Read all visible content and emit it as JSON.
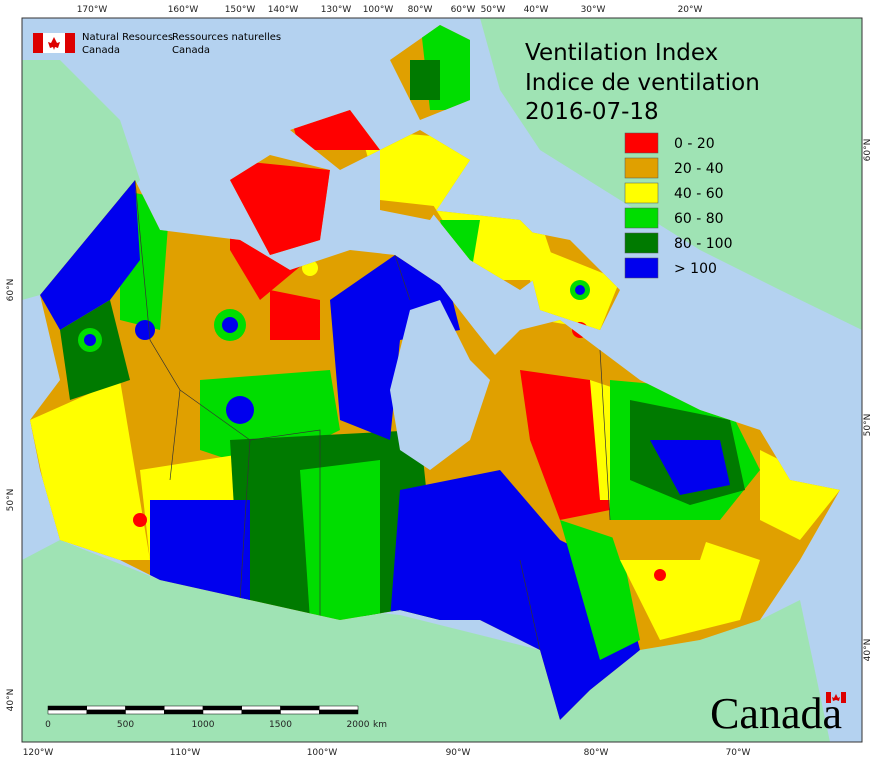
{
  "logo": {
    "en_line1": "Natural Resources",
    "en_line2": "Canada",
    "fr_line1": "Ressources naturelles",
    "fr_line2": "Canada"
  },
  "title": {
    "en": "Ventilation Index",
    "fr": "Indice de ventilation",
    "date": "2016-07-18"
  },
  "legend": [
    {
      "label": "0 - 20",
      "color": "#ff0000"
    },
    {
      "label": "20 - 40",
      "color": "#e0a000"
    },
    {
      "label": "40 - 60",
      "color": "#ffff00"
    },
    {
      "label": "60 - 80",
      "color": "#00dd00"
    },
    {
      "label": "80 - 100",
      "color": "#007a00"
    },
    {
      "label": "> 100",
      "color": "#0000ee"
    }
  ],
  "graticule": {
    "top": [
      "170°W",
      "160°W",
      "150°W",
      "140°W",
      "130°W",
      "100°W",
      "80°W",
      "60°W",
      "50°W",
      "40°W",
      "30°W",
      "20°W"
    ],
    "bottom": [
      "120°W",
      "110°W",
      "100°W",
      "90°W",
      "80°W",
      "70°W"
    ],
    "left": [
      "60°N",
      "50°N",
      "40°N"
    ],
    "right": [
      "60°N",
      "50°N",
      "40°N"
    ]
  },
  "scale_bar": {
    "labels": [
      "0",
      "500",
      "1000",
      "1500",
      "2000"
    ],
    "unit": "km"
  },
  "wordmark": "Canada"
}
